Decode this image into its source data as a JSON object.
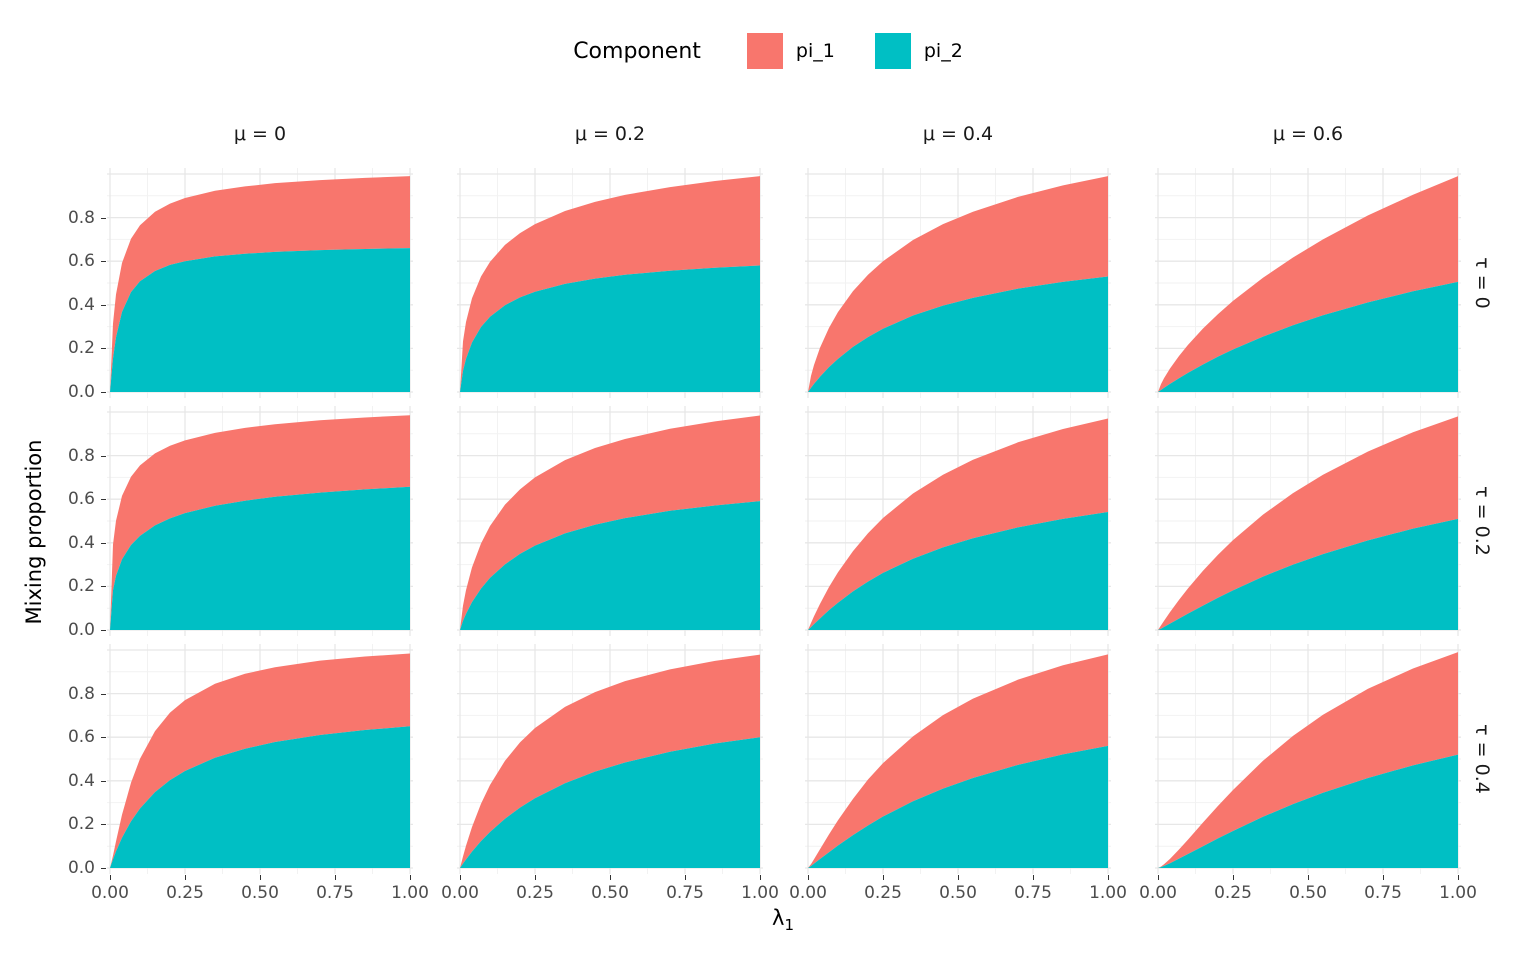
{
  "legend": {
    "title": "Component",
    "items": [
      {
        "label": "pi_1",
        "color": "#F8766D"
      },
      {
        "label": "pi_2",
        "color": "#00BFC4"
      }
    ]
  },
  "axes": {
    "x_label": "λ",
    "x_label_sub": "1",
    "y_label": "Mixing proportion",
    "x_tick_labels": [
      "0.00",
      "0.25",
      "0.50",
      "0.75",
      "1.00"
    ],
    "x_tick_values": [
      0,
      0.25,
      0.5,
      0.75,
      1
    ],
    "y_tick_labels": [
      "0.0",
      "0.2",
      "0.4",
      "0.6",
      "0.8"
    ],
    "y_tick_values": [
      0,
      0.2,
      0.4,
      0.6,
      0.8
    ],
    "x_minor": [
      0.125,
      0.375,
      0.625,
      0.875
    ],
    "y_minor": [
      0.1,
      0.3,
      0.5,
      0.7,
      0.9
    ],
    "y_major_grid": [
      0,
      0.2,
      0.4,
      0.6,
      0.8,
      1.0
    ]
  },
  "facets": {
    "col_labels": [
      "μ = 0",
      "μ = 0.2",
      "μ = 0.4",
      "μ = 0.6"
    ],
    "row_labels": [
      "τ = 0",
      "τ = 0.2",
      "τ = 0.4"
    ]
  },
  "colors": {
    "pi_1": "#F8766D",
    "pi_2": "#00BFC4",
    "grid_major": "#e7e7e7",
    "grid_minor": "#f2f2f2",
    "tick_text": "#4d4d4d"
  },
  "chart_data": {
    "type": "area",
    "stacked": true,
    "title": "",
    "xlabel": "lambda_1",
    "ylabel": "Mixing proportion",
    "xlim": [
      0,
      1
    ],
    "ylim": [
      0,
      1
    ],
    "legend_position": "top",
    "series_names": [
      "pi_1",
      "pi_2"
    ],
    "x": [
      0,
      0.01,
      0.02,
      0.04,
      0.07,
      0.1,
      0.15,
      0.2,
      0.25,
      0.35,
      0.45,
      0.55,
      0.7,
      0.85,
      1.0
    ],
    "panels": [
      {
        "row": 0,
        "col": 0,
        "mu": 0,
        "tau": 0,
        "pi_2": [
          0,
          0.154,
          0.251,
          0.367,
          0.458,
          0.508,
          0.555,
          0.583,
          0.6,
          0.622,
          0.634,
          0.643,
          0.651,
          0.656,
          0.66
        ],
        "pi_1": [
          0,
          0.16,
          0.197,
          0.225,
          0.245,
          0.257,
          0.272,
          0.281,
          0.29,
          0.301,
          0.309,
          0.315,
          0.321,
          0.326,
          0.33
        ]
      },
      {
        "row": 0,
        "col": 1,
        "mu": 0.2,
        "tau": 0,
        "pi_2": [
          0,
          0.097,
          0.152,
          0.227,
          0.298,
          0.345,
          0.398,
          0.434,
          0.46,
          0.496,
          0.52,
          0.538,
          0.556,
          0.57,
          0.58
        ],
        "pi_1": [
          0,
          0.135,
          0.169,
          0.203,
          0.232,
          0.252,
          0.277,
          0.295,
          0.31,
          0.334,
          0.352,
          0.366,
          0.384,
          0.398,
          0.41
        ]
      },
      {
        "row": 0,
        "col": 2,
        "mu": 0.4,
        "tau": 0,
        "pi_2": [
          0,
          0.019,
          0.037,
          0.07,
          0.114,
          0.152,
          0.207,
          0.252,
          0.29,
          0.351,
          0.396,
          0.432,
          0.474,
          0.505,
          0.53
        ],
        "pi_1": [
          0,
          0.055,
          0.087,
          0.133,
          0.18,
          0.215,
          0.256,
          0.286,
          0.31,
          0.346,
          0.374,
          0.395,
          0.421,
          0.443,
          0.46
        ]
      },
      {
        "row": 0,
        "col": 3,
        "mu": 0.6,
        "tau": 0,
        "pi_2": [
          0,
          0.009,
          0.019,
          0.037,
          0.063,
          0.088,
          0.126,
          0.162,
          0.195,
          0.254,
          0.306,
          0.352,
          0.411,
          0.462,
          0.505
        ],
        "pi_1": [
          0,
          0.027,
          0.044,
          0.071,
          0.102,
          0.128,
          0.165,
          0.195,
          0.223,
          0.27,
          0.311,
          0.348,
          0.399,
          0.443,
          0.485
        ]
      },
      {
        "row": 1,
        "col": 0,
        "mu": 0,
        "tau": 0.2,
        "pi_2": [
          0,
          0.183,
          0.248,
          0.324,
          0.39,
          0.432,
          0.48,
          0.512,
          0.536,
          0.57,
          0.593,
          0.611,
          0.63,
          0.645,
          0.657
        ],
        "pi_1": [
          0,
          0.209,
          0.253,
          0.291,
          0.313,
          0.323,
          0.33,
          0.333,
          0.334,
          0.334,
          0.334,
          0.333,
          0.332,
          0.33,
          0.328
        ]
      },
      {
        "row": 1,
        "col": 1,
        "mu": 0.2,
        "tau": 0.2,
        "pi_2": [
          0,
          0.042,
          0.074,
          0.128,
          0.19,
          0.239,
          0.301,
          0.349,
          0.387,
          0.443,
          0.483,
          0.513,
          0.547,
          0.571,
          0.591
        ],
        "pi_1": [
          0,
          0.07,
          0.109,
          0.159,
          0.207,
          0.238,
          0.274,
          0.296,
          0.313,
          0.336,
          0.352,
          0.363,
          0.376,
          0.386,
          0.393
        ]
      },
      {
        "row": 1,
        "col": 2,
        "mu": 0.4,
        "tau": 0.2,
        "pi_2": [
          0,
          0.013,
          0.027,
          0.053,
          0.091,
          0.125,
          0.177,
          0.222,
          0.262,
          0.327,
          0.379,
          0.421,
          0.471,
          0.51,
          0.541
        ],
        "pi_1": [
          0,
          0.019,
          0.036,
          0.067,
          0.106,
          0.14,
          0.185,
          0.222,
          0.252,
          0.299,
          0.333,
          0.36,
          0.39,
          0.412,
          0.429
        ]
      },
      {
        "row": 1,
        "col": 3,
        "mu": 0.6,
        "tau": 0.2,
        "pi_2": [
          0,
          0.006,
          0.014,
          0.029,
          0.052,
          0.075,
          0.112,
          0.148,
          0.182,
          0.245,
          0.3,
          0.348,
          0.411,
          0.465,
          0.51
        ],
        "pi_1": [
          0,
          0.015,
          0.028,
          0.053,
          0.086,
          0.116,
          0.16,
          0.197,
          0.23,
          0.284,
          0.328,
          0.364,
          0.408,
          0.442,
          0.47
        ]
      },
      {
        "row": 2,
        "col": 0,
        "mu": 0,
        "tau": 0.4,
        "pi_2": [
          0,
          0.04,
          0.076,
          0.139,
          0.214,
          0.273,
          0.348,
          0.403,
          0.445,
          0.506,
          0.547,
          0.578,
          0.61,
          0.633,
          0.65
        ],
        "pi_1": [
          0,
          0.017,
          0.046,
          0.105,
          0.177,
          0.228,
          0.28,
          0.31,
          0.325,
          0.339,
          0.344,
          0.343,
          0.341,
          0.337,
          0.334
        ]
      },
      {
        "row": 2,
        "col": 1,
        "mu": 0.2,
        "tau": 0.4,
        "pi_2": [
          0,
          0.02,
          0.039,
          0.075,
          0.123,
          0.165,
          0.226,
          0.277,
          0.32,
          0.389,
          0.442,
          0.484,
          0.533,
          0.571,
          0.6
        ],
        "pi_1": [
          0,
          0.033,
          0.063,
          0.113,
          0.172,
          0.216,
          0.266,
          0.299,
          0.322,
          0.35,
          0.365,
          0.373,
          0.378,
          0.379,
          0.379
        ]
      },
      {
        "row": 2,
        "col": 2,
        "mu": 0.4,
        "tau": 0.4,
        "pi_2": [
          0,
          0.009,
          0.02,
          0.041,
          0.072,
          0.103,
          0.151,
          0.195,
          0.236,
          0.306,
          0.364,
          0.413,
          0.473,
          0.521,
          0.56
        ],
        "pi_1": [
          0,
          0.009,
          0.02,
          0.045,
          0.082,
          0.116,
          0.166,
          0.211,
          0.245,
          0.298,
          0.337,
          0.364,
          0.391,
          0.409,
          0.42
        ]
      },
      {
        "row": 2,
        "col": 3,
        "mu": 0.6,
        "tau": 0.4,
        "pi_2": [
          0,
          0.004,
          0.01,
          0.022,
          0.043,
          0.064,
          0.1,
          0.136,
          0.17,
          0.235,
          0.293,
          0.345,
          0.413,
          0.471,
          0.52
        ],
        "pi_1": [
          0,
          0.003,
          0.007,
          0.02,
          0.042,
          0.066,
          0.109,
          0.149,
          0.188,
          0.257,
          0.313,
          0.358,
          0.409,
          0.444,
          0.47
        ]
      }
    ]
  }
}
